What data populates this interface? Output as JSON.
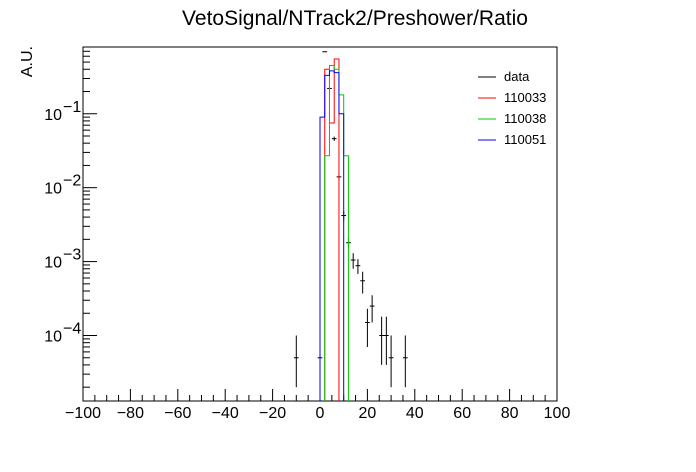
{
  "chart_data": {
    "type": "line",
    "title": "VetoSignal/NTrack2/Preshower/Ratio",
    "xlabel": "",
    "ylabel": "A.U.",
    "xlim": [
      -100,
      100
    ],
    "ylim": [
      1.3e-05,
      0.8
    ],
    "yscale": "log",
    "grid": false,
    "legend_position": "top-right",
    "x_ticks": [
      -100,
      -80,
      -60,
      -40,
      -20,
      0,
      20,
      40,
      60,
      80,
      100
    ],
    "x_tick_labels": [
      "−100",
      "−80",
      "−60",
      "−40",
      "−20",
      "0",
      "20",
      "40",
      "60",
      "80",
      "100"
    ],
    "y_ticks": [
      {
        "value": 0.0001,
        "base": "10",
        "exp": "−4"
      },
      {
        "value": 0.001,
        "base": "10",
        "exp": "−3"
      },
      {
        "value": 0.01,
        "base": "10",
        "exp": "−2"
      },
      {
        "value": 0.1,
        "base": "10",
        "exp": "−1"
      }
    ],
    "bin_width": 2,
    "legend": [
      {
        "name": "data",
        "color": "#000000"
      },
      {
        "name": "110033",
        "color": "#ff0000"
      },
      {
        "name": "110038",
        "color": "#00cc00"
      },
      {
        "name": "110051",
        "color": "#0000ff"
      }
    ],
    "series": [
      {
        "name": "data",
        "color": "#000000",
        "style": "markers",
        "points": [
          {
            "x": -10,
            "y": 5e-05,
            "err": [
              3e-05,
              5e-05
            ]
          },
          {
            "x": 0,
            "y": 5e-05,
            "err": [
              3e-05,
              5e-05
            ]
          },
          {
            "x": 2,
            "y": 0.69,
            "err": [
              0.0,
              0.0
            ]
          },
          {
            "x": 4,
            "y": 0.22,
            "err": [
              0.01,
              0.01
            ]
          },
          {
            "x": 6,
            "y": 0.046,
            "err": [
              0.003,
              0.003
            ]
          },
          {
            "x": 8,
            "y": 0.014,
            "err": [
              0.0015,
              0.0015
            ]
          },
          {
            "x": 10,
            "y": 0.0042,
            "err": [
              0.0006,
              0.0006
            ]
          },
          {
            "x": 12,
            "y": 0.0018,
            "err": [
              0.0003,
              0.0003
            ]
          },
          {
            "x": 14,
            "y": 0.00105,
            "err": [
              0.00025,
              0.00025
            ]
          },
          {
            "x": 16,
            "y": 0.00088,
            "err": [
              0.0002,
              0.0002
            ]
          },
          {
            "x": 18,
            "y": 0.00055,
            "err": [
              0.00018,
              0.00018
            ]
          },
          {
            "x": 20,
            "y": 0.00015,
            "err": [
              8e-05,
              8e-05
            ]
          },
          {
            "x": 22,
            "y": 0.00025,
            "err": [
              0.0001,
              0.0001
            ]
          },
          {
            "x": 26,
            "y": 0.0001,
            "err": [
              6e-05,
              8e-05
            ]
          },
          {
            "x": 28,
            "y": 0.0001,
            "err": [
              6e-05,
              8e-05
            ]
          },
          {
            "x": 30,
            "y": 5e-05,
            "err": [
              3e-05,
              5e-05
            ]
          },
          {
            "x": 36,
            "y": 5e-05,
            "err": [
              3e-05,
              5e-05
            ]
          }
        ]
      },
      {
        "name": "110033",
        "color": "#ff0000",
        "style": "step",
        "bins": [
          {
            "x0": 2,
            "x1": 4,
            "y": 0.4
          },
          {
            "x0": 4,
            "x1": 6,
            "y": 0.075
          },
          {
            "x0": 6,
            "x1": 8,
            "y": 0.55
          }
        ]
      },
      {
        "name": "110038",
        "color": "#00cc00",
        "style": "step",
        "bins": [
          {
            "x0": 2,
            "x1": 4,
            "y": 0.027
          },
          {
            "x0": 4,
            "x1": 6,
            "y": 0.45
          },
          {
            "x0": 6,
            "x1": 8,
            "y": 0.4
          },
          {
            "x0": 8,
            "x1": 10,
            "y": 0.18
          },
          {
            "x0": 10,
            "x1": 12,
            "y": 0.027
          }
        ]
      },
      {
        "name": "110051",
        "color": "#0000ff",
        "style": "step",
        "bins": [
          {
            "x0": 0,
            "x1": 2,
            "y": 0.09
          },
          {
            "x0": 2,
            "x1": 4,
            "y": 0.33
          },
          {
            "x0": 4,
            "x1": 6,
            "y": 0.38
          },
          {
            "x0": 6,
            "x1": 8,
            "y": 0.36
          },
          {
            "x0": 8,
            "x1": 10,
            "y": 0.1
          }
        ]
      }
    ]
  }
}
